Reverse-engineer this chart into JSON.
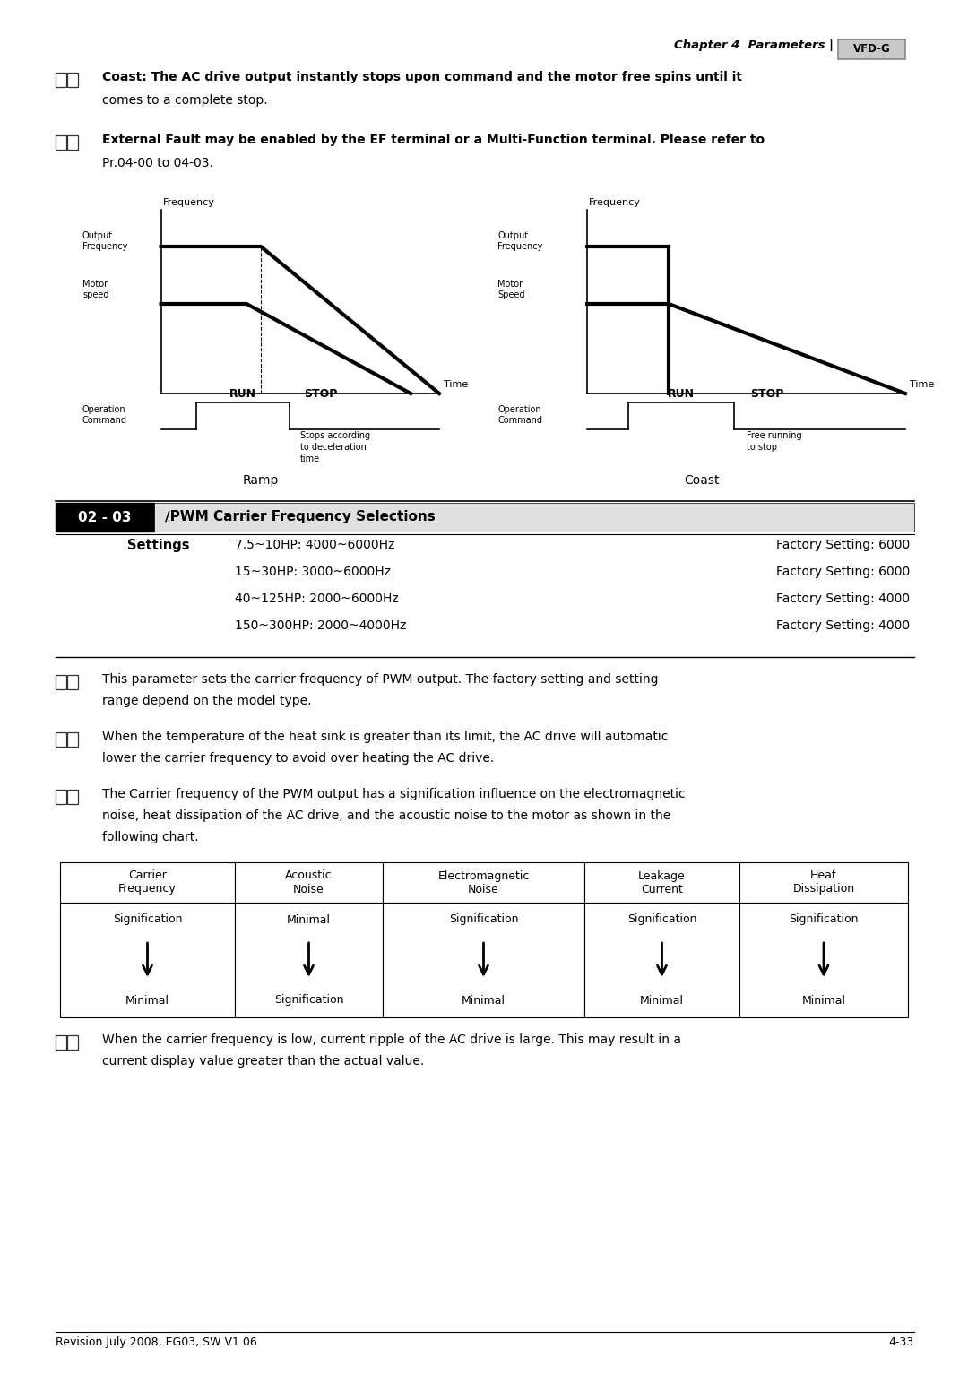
{
  "page_width": 10.8,
  "page_height": 15.34,
  "bg_color": "#ffffff",
  "header_text": "Chapter 4  Parameters |",
  "header_logo": "VFD-G",
  "bullets_top": [
    [
      "Coast: The AC drive output instantly stops upon command and the motor free spins until it",
      "comes to a complete stop."
    ],
    [
      "External Fault may be enabled by the EF terminal or a Multi-Function terminal. Please refer to",
      "Pr.04-00 to 04-03."
    ]
  ],
  "param_box_label": "02 - 03",
  "param_title": "∕PWM Carrier Frequency Selections",
  "settings_label": "Settings",
  "settings_rows": [
    [
      "7.5~10HP: 4000~6000Hz",
      "Factory Setting: 6000"
    ],
    [
      "15~30HP: 3000~6000Hz",
      "Factory Setting: 6000"
    ],
    [
      "40~125HP: 2000~6000Hz",
      "Factory Setting: 4000"
    ],
    [
      "150~300HP: 2000~4000Hz",
      "Factory Setting: 4000"
    ]
  ],
  "bullets_mid": [
    [
      "This parameter sets the carrier frequency of PWM output. The factory setting and setting",
      "range depend on the model type."
    ],
    [
      "When the temperature of the heat sink is greater than its limit, the AC drive will automatic",
      "lower the carrier frequency to avoid over heating the AC drive."
    ],
    [
      "The Carrier frequency of the PWM output has a signification influence on the electromagnetic",
      "noise, heat dissipation of the AC drive, and the acoustic noise to the motor as shown in the",
      "following chart."
    ]
  ],
  "table_headers": [
    "Carrier\nFrequency",
    "Acoustic\nNoise",
    "Electromagnetic\nNoise",
    "Leakage\nCurrent",
    "Heat\nDissipation"
  ],
  "table_row1": [
    "Signification",
    "Minimal",
    "Signification",
    "Signification",
    "Signification"
  ],
  "table_row2": [
    "Minimal",
    "Signification",
    "Minimal",
    "Minimal",
    "Minimal"
  ],
  "bullets_bot": [
    [
      "When the carrier frequency is low, current ripple of the AC drive is large. This may result in a",
      "current display value greater than the actual value."
    ]
  ],
  "footer_left": "Revision July 2008, EG03, SW V1.06",
  "footer_right": "4-33"
}
